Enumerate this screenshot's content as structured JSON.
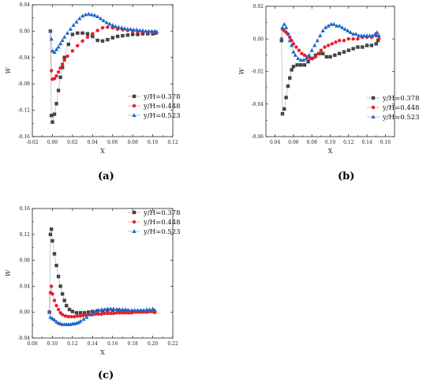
{
  "chart_data": [
    {
      "type": "scatter",
      "panel": "a",
      "xlabel": "X",
      "ylabel": "W",
      "xlim": [
        -0.02,
        0.12
      ],
      "ylim": [
        -0.16,
        0.04
      ],
      "xticks": [
        "-0.02",
        "0.00",
        "0.02",
        "0.04",
        "0.06",
        "0.08",
        "0.10",
        "0.12"
      ],
      "yticks": [
        "0.04",
        "0.00",
        "-0.04",
        "-0.08",
        "-0.12",
        "-0.16"
      ],
      "xtick_values": [
        -0.02,
        0.0,
        0.02,
        0.04,
        0.06,
        0.08,
        0.1,
        0.12
      ],
      "ytick_values": [
        0.04,
        0.0,
        -0.04,
        -0.08,
        -0.12,
        -0.16
      ],
      "legend_position": "right",
      "series": [
        {
          "name": "y/H=0.378",
          "color": "#444444",
          "marker": "square",
          "x": [
            -0.002,
            -0.001,
            0.0,
            0.002,
            0.004,
            0.006,
            0.008,
            0.01,
            0.012,
            0.016,
            0.02,
            0.025,
            0.03,
            0.035,
            0.04,
            0.045,
            0.05,
            0.055,
            0.06,
            0.065,
            0.07,
            0.075,
            0.08,
            0.085,
            0.09,
            0.095,
            0.1,
            0.103
          ],
          "y": [
            0.0,
            -0.128,
            -0.138,
            -0.126,
            -0.11,
            -0.09,
            -0.07,
            -0.055,
            -0.04,
            -0.02,
            -0.005,
            -0.003,
            -0.003,
            -0.004,
            -0.008,
            -0.014,
            -0.015,
            -0.013,
            -0.01,
            -0.008,
            -0.007,
            -0.006,
            -0.005,
            -0.005,
            -0.004,
            -0.004,
            -0.004,
            -0.003
          ]
        },
        {
          "name": "y/H=0.448",
          "color": "#e8202a",
          "marker": "circle",
          "x": [
            -0.002,
            -0.001,
            0.0,
            0.002,
            0.004,
            0.006,
            0.008,
            0.01,
            0.012,
            0.015,
            0.02,
            0.025,
            0.03,
            0.035,
            0.04,
            0.045,
            0.05,
            0.055,
            0.06,
            0.065,
            0.07,
            0.075,
            0.08,
            0.085,
            0.09,
            0.095,
            0.1,
            0.103
          ],
          "y": [
            0.0,
            -0.06,
            -0.073,
            -0.072,
            -0.068,
            -0.062,
            -0.056,
            -0.05,
            -0.044,
            -0.038,
            -0.03,
            -0.022,
            -0.015,
            -0.009,
            -0.004,
            0.001,
            0.005,
            0.006,
            0.005,
            0.003,
            0.002,
            0.001,
            0.0,
            -0.001,
            -0.001,
            -0.002,
            -0.002,
            -0.002
          ]
        },
        {
          "name": "y/H=0.523",
          "color": "#1e66c8",
          "marker": "triangle",
          "x": [
            -0.002,
            -0.001,
            0.0,
            0.002,
            0.004,
            0.006,
            0.008,
            0.01,
            0.012,
            0.015,
            0.018,
            0.021,
            0.024,
            0.027,
            0.03,
            0.033,
            0.036,
            0.039,
            0.042,
            0.045,
            0.048,
            0.051,
            0.054,
            0.057,
            0.06,
            0.063,
            0.066,
            0.069,
            0.072,
            0.075,
            0.078,
            0.081,
            0.084,
            0.087,
            0.09,
            0.093,
            0.096,
            0.099,
            0.102,
            0.104
          ],
          "y": [
            0.0,
            -0.012,
            -0.03,
            -0.032,
            -0.028,
            -0.024,
            -0.019,
            -0.014,
            -0.009,
            -0.003,
            0.003,
            0.009,
            0.014,
            0.019,
            0.023,
            0.025,
            0.026,
            0.025,
            0.024,
            0.022,
            0.019,
            0.016,
            0.013,
            0.011,
            0.009,
            0.007,
            0.006,
            0.005,
            0.004,
            0.003,
            0.003,
            0.002,
            0.002,
            0.001,
            0.001,
            0.0,
            0.0,
            0.0,
            0.0,
            -0.001
          ]
        }
      ]
    },
    {
      "type": "scatter",
      "panel": "b",
      "xlabel": "X",
      "ylabel": "W",
      "xlim": [
        0.03,
        0.17
      ],
      "ylim": [
        -0.06,
        0.02
      ],
      "xticks": [
        "0.04",
        "0.06",
        "0.08",
        "0.10",
        "0.12",
        "0.14",
        "0.16"
      ],
      "yticks": [
        "0.02",
        "0.00",
        "-0.02",
        "-0.04",
        "-0.06"
      ],
      "xtick_values": [
        0.04,
        0.06,
        0.08,
        0.1,
        0.12,
        0.14,
        0.16
      ],
      "ytick_values": [
        0.02,
        0.0,
        -0.02,
        -0.04,
        -0.06
      ],
      "legend_position": "bottom-right",
      "series": [
        {
          "name": "y/H=0.378",
          "color": "#444444",
          "marker": "square",
          "x": [
            0.047,
            0.048,
            0.05,
            0.052,
            0.054,
            0.056,
            0.058,
            0.06,
            0.064,
            0.068,
            0.072,
            0.076,
            0.08,
            0.084,
            0.088,
            0.092,
            0.096,
            0.1,
            0.105,
            0.11,
            0.115,
            0.12,
            0.125,
            0.13,
            0.135,
            0.14,
            0.145,
            0.15,
            0.152
          ],
          "y": [
            -0.001,
            -0.046,
            -0.043,
            -0.036,
            -0.029,
            -0.024,
            -0.019,
            -0.017,
            -0.016,
            -0.016,
            -0.016,
            -0.014,
            -0.012,
            -0.01,
            -0.009,
            -0.009,
            -0.011,
            -0.011,
            -0.01,
            -0.009,
            -0.008,
            -0.007,
            -0.006,
            -0.005,
            -0.005,
            -0.004,
            -0.004,
            -0.003,
            -0.001
          ]
        },
        {
          "name": "y/H=0.448",
          "color": "#e8202a",
          "marker": "circle",
          "x": [
            0.047,
            0.048,
            0.05,
            0.052,
            0.054,
            0.056,
            0.058,
            0.06,
            0.063,
            0.066,
            0.069,
            0.072,
            0.075,
            0.078,
            0.081,
            0.084,
            0.087,
            0.09,
            0.094,
            0.098,
            0.102,
            0.106,
            0.11,
            0.115,
            0.12,
            0.125,
            0.13,
            0.135,
            0.14,
            0.145,
            0.15,
            0.153
          ],
          "y": [
            0.0,
            0.006,
            0.005,
            0.004,
            0.003,
            0.001,
            -0.001,
            -0.003,
            -0.005,
            -0.007,
            -0.009,
            -0.01,
            -0.011,
            -0.012,
            -0.012,
            -0.011,
            -0.009,
            -0.007,
            -0.005,
            -0.004,
            -0.003,
            -0.002,
            -0.001,
            -0.001,
            0.0,
            0.0,
            0.0,
            0.001,
            0.001,
            0.001,
            0.002,
            0.0
          ]
        },
        {
          "name": "y/H=0.523",
          "color": "#1e66c8",
          "marker": "triangle",
          "x": [
            0.047,
            0.048,
            0.05,
            0.052,
            0.054,
            0.056,
            0.058,
            0.06,
            0.062,
            0.065,
            0.068,
            0.071,
            0.074,
            0.077,
            0.08,
            0.083,
            0.086,
            0.089,
            0.092,
            0.095,
            0.098,
            0.101,
            0.104,
            0.107,
            0.11,
            0.113,
            0.116,
            0.119,
            0.122,
            0.125,
            0.128,
            0.131,
            0.134,
            0.137,
            0.14,
            0.143,
            0.146,
            0.149,
            0.151,
            0.153
          ],
          "y": [
            0.0,
            0.007,
            0.009,
            0.007,
            0.003,
            -0.001,
            -0.004,
            -0.008,
            -0.01,
            -0.012,
            -0.013,
            -0.013,
            -0.012,
            -0.01,
            -0.007,
            -0.004,
            -0.001,
            0.002,
            0.005,
            0.007,
            0.008,
            0.009,
            0.009,
            0.008,
            0.008,
            0.007,
            0.006,
            0.005,
            0.004,
            0.003,
            0.003,
            0.002,
            0.002,
            0.002,
            0.002,
            0.002,
            0.002,
            0.003,
            0.004,
            0.002
          ]
        }
      ]
    },
    {
      "type": "scatter",
      "panel": "c",
      "xlabel": "X",
      "ylabel": "W",
      "xlim": [
        0.08,
        0.22
      ],
      "ylim": [
        -0.04,
        0.16
      ],
      "xticks": [
        "0.08",
        "0.10",
        "0.12",
        "0.14",
        "0.16",
        "0.18",
        "0.20",
        "0.22"
      ],
      "yticks": [
        "0.16",
        "0.12",
        "0.08",
        "0.04",
        "0.00",
        "-0.04"
      ],
      "xtick_values": [
        0.08,
        0.1,
        0.12,
        0.14,
        0.16,
        0.18,
        0.2,
        0.22
      ],
      "ytick_values": [
        0.16,
        0.12,
        0.08,
        0.04,
        0.0,
        -0.04
      ],
      "legend_position": "top-right",
      "series": [
        {
          "name": "y/H=0.378",
          "color": "#444444",
          "marker": "square",
          "x": [
            0.097,
            0.098,
            0.099,
            0.1,
            0.102,
            0.104,
            0.106,
            0.108,
            0.11,
            0.112,
            0.114,
            0.117,
            0.12,
            0.124,
            0.128,
            0.132,
            0.136,
            0.14,
            0.145,
            0.15,
            0.155,
            0.16,
            0.165,
            0.17,
            0.175,
            0.18,
            0.185,
            0.19,
            0.195,
            0.2,
            0.202
          ],
          "y": [
            0.0,
            0.12,
            0.128,
            0.11,
            0.09,
            0.072,
            0.055,
            0.04,
            0.028,
            0.018,
            0.01,
            0.004,
            0.001,
            -0.001,
            -0.001,
            -0.001,
            0.0,
            0.001,
            0.002,
            0.002,
            0.003,
            0.003,
            0.003,
            0.002,
            0.002,
            0.001,
            0.001,
            0.001,
            0.001,
            0.001,
            0.0
          ]
        },
        {
          "name": "y/H=0.448",
          "color": "#e8202a",
          "marker": "circle",
          "x": [
            0.097,
            0.098,
            0.099,
            0.1,
            0.102,
            0.104,
            0.106,
            0.108,
            0.11,
            0.113,
            0.116,
            0.119,
            0.122,
            0.125,
            0.128,
            0.131,
            0.134,
            0.137,
            0.14,
            0.143,
            0.146,
            0.149,
            0.152,
            0.155,
            0.158,
            0.161,
            0.164,
            0.167,
            0.17,
            0.173,
            0.176,
            0.179,
            0.182,
            0.185,
            0.188,
            0.191,
            0.194,
            0.197,
            0.2,
            0.202
          ],
          "y": [
            0.0,
            0.03,
            0.04,
            0.028,
            0.018,
            0.01,
            0.004,
            -0.001,
            -0.004,
            -0.006,
            -0.007,
            -0.007,
            -0.007,
            -0.006,
            -0.006,
            -0.005,
            -0.005,
            -0.004,
            -0.004,
            -0.003,
            -0.003,
            -0.003,
            -0.002,
            -0.002,
            -0.002,
            -0.002,
            -0.001,
            -0.001,
            -0.001,
            -0.001,
            -0.001,
            -0.001,
            0.0,
            0.0,
            0.0,
            0.0,
            0.0,
            0.001,
            0.001,
            0.0
          ]
        },
        {
          "name": "y/H=0.523",
          "color": "#1e66c8",
          "marker": "triangle",
          "x": [
            0.097,
            0.098,
            0.1,
            0.102,
            0.104,
            0.106,
            0.108,
            0.11,
            0.112,
            0.114,
            0.116,
            0.118,
            0.12,
            0.122,
            0.124,
            0.126,
            0.128,
            0.131,
            0.134,
            0.137,
            0.14,
            0.143,
            0.146,
            0.149,
            0.152,
            0.155,
            0.158,
            0.161,
            0.164,
            0.167,
            0.17,
            0.173,
            0.176,
            0.179,
            0.182,
            0.185,
            0.188,
            0.191,
            0.194,
            0.197,
            0.2,
            0.202
          ],
          "y": [
            0.0,
            -0.008,
            -0.01,
            -0.012,
            -0.015,
            -0.017,
            -0.018,
            -0.019,
            -0.019,
            -0.019,
            -0.019,
            -0.019,
            -0.018,
            -0.018,
            -0.017,
            -0.016,
            -0.014,
            -0.011,
            -0.008,
            -0.004,
            -0.001,
            0.001,
            0.003,
            0.004,
            0.004,
            0.005,
            0.005,
            0.005,
            0.004,
            0.004,
            0.004,
            0.004,
            0.003,
            0.003,
            0.003,
            0.003,
            0.003,
            0.003,
            0.004,
            0.004,
            0.005,
            0.003
          ]
        }
      ]
    }
  ],
  "captions": [
    "(a)",
    "(b)",
    "(c)"
  ]
}
